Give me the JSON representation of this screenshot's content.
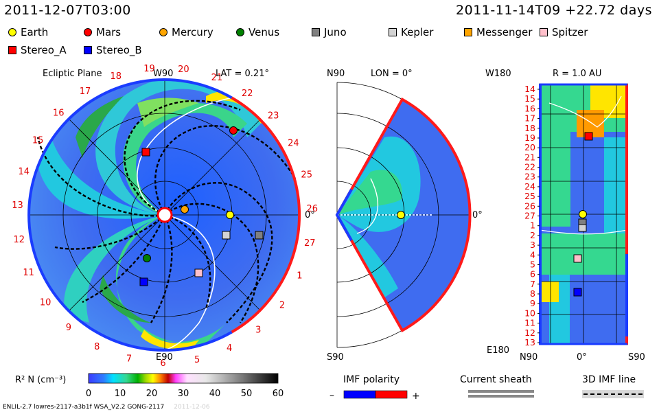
{
  "header": {
    "left": "2011-12-07T03:00",
    "right": "2011-11-14T09 +22.72 days"
  },
  "legend": [
    {
      "name": "Earth",
      "color": "#ffff00",
      "shape": "circle"
    },
    {
      "name": "Mars",
      "color": "#ff0000",
      "shape": "circle"
    },
    {
      "name": "Mercury",
      "color": "#ffa500",
      "shape": "circle"
    },
    {
      "name": "Venus",
      "color": "#008000",
      "shape": "circle"
    },
    {
      "name": "Juno",
      "color": "#808080",
      "shape": "square"
    },
    {
      "name": "Kepler",
      "color": "#d3d3d3",
      "shape": "square"
    },
    {
      "name": "Messenger",
      "color": "#ffa500",
      "shape": "square"
    },
    {
      "name": "Spitzer",
      "color": "#ffc0cb",
      "shape": "square"
    },
    {
      "name": "Stereo_A",
      "color": "#ff0000",
      "shape": "square"
    },
    {
      "name": "Stereo_B",
      "color": "#0000ff",
      "shape": "square"
    }
  ],
  "panels": {
    "ecliptic": {
      "title": "Ecliptic Plane",
      "lat": "LAT = 0.21°",
      "top_label": "W90",
      "bottom_label": "E90",
      "right_label": "0°"
    },
    "meridional": {
      "lon": "LON = 0°",
      "top_label": "N90",
      "bottom_label": "S90",
      "right_label": "0°"
    },
    "radius": {
      "r": "R = 1.0 AU",
      "corner_top": "W180",
      "corner_bottom": "E180",
      "x_labels": [
        "N90",
        "0°",
        "S90"
      ]
    }
  },
  "colorbar": {
    "label": "R² N (cm⁻³)",
    "ticks": [
      "0",
      "10",
      "20",
      "30",
      "40",
      "50",
      "60"
    ],
    "range": [
      0,
      60
    ]
  },
  "polarity": {
    "title": "IMF polarity",
    "minus": "–",
    "plus": "+",
    "colors": [
      "#0000ff",
      "#ff0000"
    ]
  },
  "sheath": {
    "title": "Current sheath"
  },
  "imfline": {
    "title": "3D IMF line"
  },
  "footer": {
    "text": "ENLIL-2.7 lowres-2117-a3b1f WSA_V2.2 GONG-2117",
    "ghost": "2011-12-06"
  },
  "chart_data": {
    "type": "heatmap",
    "title": "",
    "quantity": "R² N (cm⁻³)",
    "color_range": [
      0,
      60
    ],
    "ecliptic_ticks": [
      "19",
      "20",
      "21",
      "22",
      "23",
      "24",
      "25",
      "26",
      "27",
      "1",
      "2",
      "3",
      "4",
      "5",
      "6",
      "7",
      "8",
      "9",
      "10",
      "11",
      "12",
      "13",
      "14",
      "15",
      "16",
      "17",
      "18"
    ],
    "radius_row_labels": [
      "14",
      "15",
      "16",
      "17",
      "18",
      "19",
      "20",
      "21",
      "22",
      "23",
      "24",
      "25",
      "26",
      "27",
      "1",
      "2",
      "3",
      "4",
      "5",
      "6",
      "7",
      "8",
      "9",
      "10",
      "11",
      "12",
      "13"
    ]
  }
}
